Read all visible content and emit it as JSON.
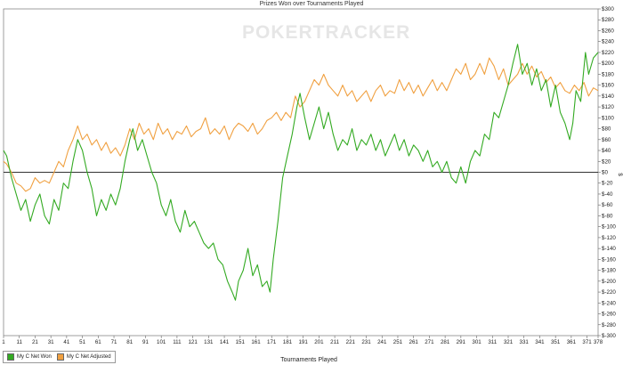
{
  "chart_data": {
    "type": "line",
    "title": "Prizes Won over Tournaments Played",
    "xlabel": "Tournaments Played",
    "ylabel": "$",
    "xlim": [
      1,
      378
    ],
    "ylim": [
      -300,
      300
    ],
    "x_ticks": [
      "1",
      "11",
      "21",
      "31",
      "41",
      "51",
      "61",
      "71",
      "81",
      "91",
      "101",
      "111",
      "121",
      "131",
      "141",
      "151",
      "161",
      "171",
      "181",
      "191",
      "201",
      "211",
      "221",
      "231",
      "241",
      "251",
      "261",
      "271",
      "281",
      "291",
      "301",
      "311",
      "321",
      "331",
      "341",
      "351",
      "361",
      "371",
      "378"
    ],
    "y_ticks": [
      "$300",
      "$280",
      "$260",
      "$240",
      "$220",
      "$200",
      "$180",
      "$160",
      "$140",
      "$120",
      "$100",
      "$80",
      "$60",
      "$40",
      "$20",
      "$0",
      "$-20",
      "$-40",
      "$-60",
      "$-80",
      "$-100",
      "$-120",
      "$-140",
      "$-160",
      "$-180",
      "$-200",
      "$-220",
      "$-240",
      "$-260",
      "$-280",
      "$-300"
    ],
    "grid": false,
    "legend_position": "bottom-left",
    "watermark": "POKERTRACKER",
    "series": [
      {
        "name": "My C Net Won",
        "color": "#33aa22",
        "points": [
          [
            1,
            40
          ],
          [
            3,
            30
          ],
          [
            6,
            -10
          ],
          [
            9,
            -40
          ],
          [
            12,
            -70
          ],
          [
            15,
            -50
          ],
          [
            18,
            -90
          ],
          [
            21,
            -60
          ],
          [
            24,
            -40
          ],
          [
            27,
            -80
          ],
          [
            30,
            -95
          ],
          [
            33,
            -50
          ],
          [
            36,
            -70
          ],
          [
            39,
            -20
          ],
          [
            42,
            -30
          ],
          [
            45,
            20
          ],
          [
            48,
            60
          ],
          [
            51,
            40
          ],
          [
            54,
            0
          ],
          [
            57,
            -30
          ],
          [
            60,
            -80
          ],
          [
            63,
            -50
          ],
          [
            66,
            -70
          ],
          [
            69,
            -40
          ],
          [
            72,
            -60
          ],
          [
            75,
            -30
          ],
          [
            78,
            20
          ],
          [
            81,
            60
          ],
          [
            83,
            80
          ],
          [
            86,
            40
          ],
          [
            89,
            60
          ],
          [
            92,
            30
          ],
          [
            95,
            0
          ],
          [
            98,
            -20
          ],
          [
            101,
            -60
          ],
          [
            104,
            -80
          ],
          [
            107,
            -50
          ],
          [
            110,
            -90
          ],
          [
            113,
            -110
          ],
          [
            116,
            -70
          ],
          [
            119,
            -100
          ],
          [
            122,
            -90
          ],
          [
            125,
            -110
          ],
          [
            128,
            -130
          ],
          [
            131,
            -140
          ],
          [
            134,
            -130
          ],
          [
            137,
            -160
          ],
          [
            140,
            -170
          ],
          [
            143,
            -200
          ],
          [
            146,
            -220
          ],
          [
            148,
            -235
          ],
          [
            150,
            -200
          ],
          [
            153,
            -180
          ],
          [
            156,
            -140
          ],
          [
            159,
            -190
          ],
          [
            162,
            -170
          ],
          [
            165,
            -210
          ],
          [
            168,
            -200
          ],
          [
            170,
            -220
          ],
          [
            172,
            -160
          ],
          [
            175,
            -90
          ],
          [
            178,
            -10
          ],
          [
            181,
            30
          ],
          [
            184,
            70
          ],
          [
            187,
            120
          ],
          [
            189,
            145
          ],
          [
            192,
            100
          ],
          [
            195,
            60
          ],
          [
            198,
            90
          ],
          [
            201,
            120
          ],
          [
            204,
            80
          ],
          [
            207,
            110
          ],
          [
            210,
            70
          ],
          [
            213,
            40
          ],
          [
            216,
            60
          ],
          [
            219,
            50
          ],
          [
            222,
            80
          ],
          [
            225,
            40
          ],
          [
            228,
            60
          ],
          [
            231,
            50
          ],
          [
            234,
            70
          ],
          [
            237,
            40
          ],
          [
            240,
            60
          ],
          [
            243,
            30
          ],
          [
            246,
            50
          ],
          [
            249,
            70
          ],
          [
            252,
            40
          ],
          [
            255,
            60
          ],
          [
            258,
            30
          ],
          [
            261,
            50
          ],
          [
            264,
            40
          ],
          [
            267,
            20
          ],
          [
            270,
            40
          ],
          [
            273,
            10
          ],
          [
            276,
            20
          ],
          [
            279,
            0
          ],
          [
            282,
            20
          ],
          [
            285,
            -10
          ],
          [
            288,
            -20
          ],
          [
            291,
            10
          ],
          [
            294,
            -20
          ],
          [
            297,
            20
          ],
          [
            300,
            40
          ],
          [
            303,
            30
          ],
          [
            306,
            70
          ],
          [
            309,
            60
          ],
          [
            312,
            110
          ],
          [
            315,
            100
          ],
          [
            318,
            130
          ],
          [
            321,
            160
          ],
          [
            324,
            200
          ],
          [
            327,
            235
          ],
          [
            330,
            180
          ],
          [
            333,
            200
          ],
          [
            336,
            160
          ],
          [
            339,
            190
          ],
          [
            342,
            150
          ],
          [
            345,
            170
          ],
          [
            348,
            120
          ],
          [
            351,
            160
          ],
          [
            354,
            110
          ],
          [
            357,
            90
          ],
          [
            360,
            60
          ],
          [
            362,
            90
          ],
          [
            364,
            150
          ],
          [
            367,
            130
          ],
          [
            370,
            220
          ],
          [
            372,
            180
          ],
          [
            375,
            210
          ],
          [
            378,
            220
          ]
        ]
      },
      {
        "name": "My C Net Adjusted",
        "color": "#f0a040",
        "points": [
          [
            1,
            20
          ],
          [
            3,
            15
          ],
          [
            6,
            0
          ],
          [
            9,
            -20
          ],
          [
            12,
            -25
          ],
          [
            15,
            -35
          ],
          [
            18,
            -30
          ],
          [
            21,
            -10
          ],
          [
            24,
            -20
          ],
          [
            27,
            -15
          ],
          [
            30,
            -20
          ],
          [
            33,
            0
          ],
          [
            36,
            20
          ],
          [
            39,
            10
          ],
          [
            42,
            40
          ],
          [
            45,
            60
          ],
          [
            48,
            85
          ],
          [
            51,
            60
          ],
          [
            54,
            70
          ],
          [
            57,
            50
          ],
          [
            60,
            60
          ],
          [
            63,
            40
          ],
          [
            66,
            55
          ],
          [
            69,
            35
          ],
          [
            72,
            45
          ],
          [
            75,
            30
          ],
          [
            78,
            50
          ],
          [
            81,
            80
          ],
          [
            84,
            60
          ],
          [
            87,
            90
          ],
          [
            90,
            70
          ],
          [
            93,
            80
          ],
          [
            96,
            60
          ],
          [
            99,
            90
          ],
          [
            102,
            70
          ],
          [
            105,
            80
          ],
          [
            108,
            60
          ],
          [
            111,
            75
          ],
          [
            114,
            70
          ],
          [
            117,
            85
          ],
          [
            120,
            65
          ],
          [
            123,
            75
          ],
          [
            126,
            80
          ],
          [
            129,
            100
          ],
          [
            132,
            70
          ],
          [
            135,
            80
          ],
          [
            138,
            70
          ],
          [
            141,
            85
          ],
          [
            144,
            60
          ],
          [
            147,
            80
          ],
          [
            150,
            90
          ],
          [
            153,
            85
          ],
          [
            156,
            75
          ],
          [
            159,
            90
          ],
          [
            162,
            70
          ],
          [
            165,
            80
          ],
          [
            168,
            95
          ],
          [
            171,
            100
          ],
          [
            174,
            110
          ],
          [
            177,
            95
          ],
          [
            180,
            110
          ],
          [
            183,
            100
          ],
          [
            186,
            140
          ],
          [
            189,
            120
          ],
          [
            192,
            130
          ],
          [
            195,
            150
          ],
          [
            198,
            170
          ],
          [
            201,
            160
          ],
          [
            204,
            180
          ],
          [
            207,
            160
          ],
          [
            210,
            150
          ],
          [
            213,
            140
          ],
          [
            216,
            160
          ],
          [
            219,
            140
          ],
          [
            222,
            150
          ],
          [
            225,
            130
          ],
          [
            228,
            140
          ],
          [
            231,
            150
          ],
          [
            234,
            130
          ],
          [
            237,
            150
          ],
          [
            240,
            160
          ],
          [
            243,
            140
          ],
          [
            246,
            150
          ],
          [
            249,
            145
          ],
          [
            252,
            170
          ],
          [
            255,
            150
          ],
          [
            258,
            165
          ],
          [
            261,
            145
          ],
          [
            264,
            160
          ],
          [
            267,
            140
          ],
          [
            270,
            155
          ],
          [
            273,
            170
          ],
          [
            276,
            150
          ],
          [
            279,
            165
          ],
          [
            282,
            150
          ],
          [
            285,
            170
          ],
          [
            288,
            190
          ],
          [
            291,
            180
          ],
          [
            294,
            200
          ],
          [
            297,
            170
          ],
          [
            300,
            180
          ],
          [
            303,
            200
          ],
          [
            306,
            180
          ],
          [
            309,
            210
          ],
          [
            312,
            195
          ],
          [
            315,
            170
          ],
          [
            318,
            190
          ],
          [
            321,
            160
          ],
          [
            324,
            170
          ],
          [
            327,
            180
          ],
          [
            330,
            200
          ],
          [
            333,
            180
          ],
          [
            336,
            195
          ],
          [
            339,
            175
          ],
          [
            342,
            185
          ],
          [
            345,
            165
          ],
          [
            348,
            175
          ],
          [
            351,
            155
          ],
          [
            354,
            165
          ],
          [
            357,
            150
          ],
          [
            360,
            145
          ],
          [
            363,
            160
          ],
          [
            366,
            150
          ],
          [
            369,
            165
          ],
          [
            372,
            140
          ],
          [
            375,
            155
          ],
          [
            378,
            150
          ]
        ]
      }
    ]
  }
}
